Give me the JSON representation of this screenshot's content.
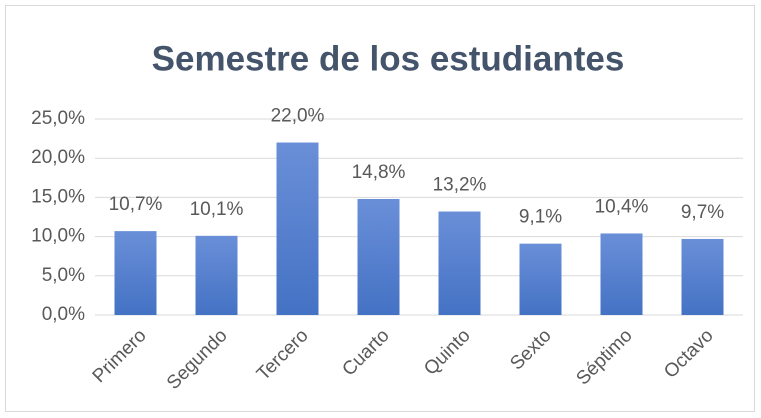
{
  "chart_data": {
    "type": "bar",
    "title": "Semestre de los estudiantes",
    "categories": [
      "Primero",
      "Segundo",
      "Tercero",
      "Cuarto",
      "Quinto",
      "Sexto",
      "Séptimo",
      "Octavo"
    ],
    "values": [
      10.7,
      10.1,
      22.0,
      14.8,
      13.2,
      9.1,
      10.4,
      9.7
    ],
    "value_labels": [
      "10,7%",
      "10,1%",
      "22,0%",
      "14,8%",
      "13,2%",
      "9,1%",
      "10,4%",
      "9,7%"
    ],
    "color": "#4472c4",
    "ylim": [
      0,
      25
    ],
    "yticks": [
      {
        "value": 0,
        "label": "0,0%"
      },
      {
        "value": 5,
        "label": "5,0%"
      },
      {
        "value": 10,
        "label": "10,0%"
      },
      {
        "value": 15,
        "label": "15,0%"
      },
      {
        "value": 20,
        "label": "20,0%"
      },
      {
        "value": 25,
        "label": "25,0%"
      }
    ],
    "grid": true
  }
}
